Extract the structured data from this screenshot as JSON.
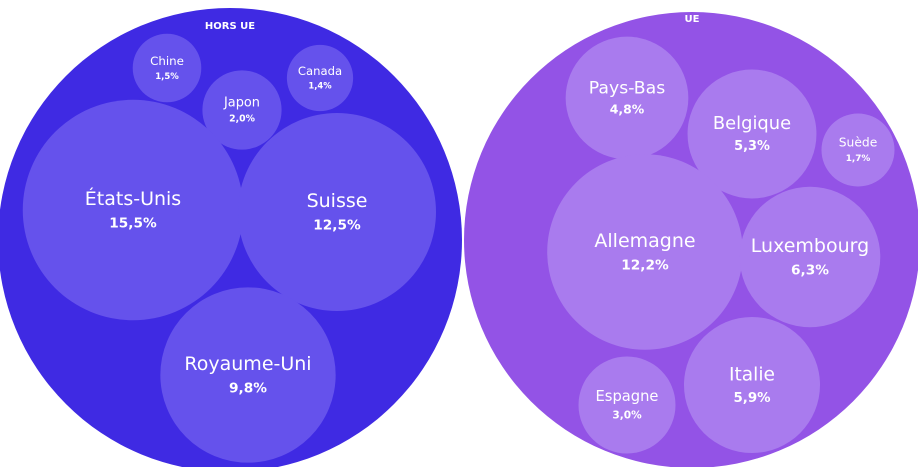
{
  "chart_data": {
    "type": "packed_bubble",
    "series": [
      {
        "name": "HORS UE",
        "color": "#3f2ae3",
        "bubble_color": "#6552ec",
        "categories": [
          "Chine",
          "Japon",
          "Canada",
          "États-Unis",
          "Suisse",
          "Royaume-Uni"
        ],
        "values": [
          1.5,
          2.0,
          1.4,
          15.5,
          12.5,
          9.8
        ],
        "value_labels": [
          "1,5%",
          "2,0%",
          "1,4%",
          "15,5%",
          "12,5%",
          "9,8%"
        ]
      },
      {
        "name": "UE",
        "color": "#9353e6",
        "bubble_color": "#a97bee",
        "categories": [
          "Pays-Bas",
          "Belgique",
          "Suède",
          "Allemagne",
          "Luxembourg",
          "Italie",
          "Espagne"
        ],
        "values": [
          4.8,
          5.3,
          1.7,
          12.2,
          6.3,
          5.9,
          3.0
        ],
        "value_labels": [
          "4,8%",
          "5,3%",
          "1,7%",
          "12,2%",
          "6,3%",
          "5,9%",
          "3,0%"
        ]
      }
    ]
  }
}
